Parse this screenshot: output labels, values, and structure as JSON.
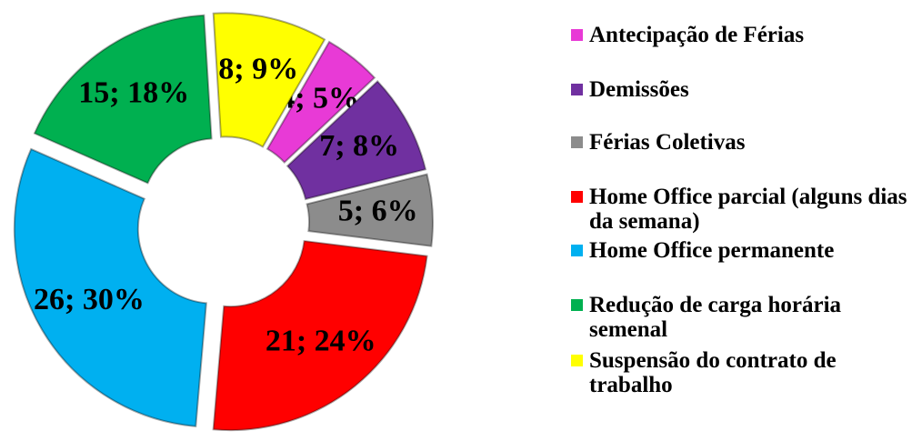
{
  "chart_data": {
    "type": "donut",
    "categories": [
      "Antecipação de Férias",
      "Demissões",
      "Férias Coletivas",
      "Home Office parcial (alguns dias da semana)",
      "Home Office permanente",
      "Redução de carga horária semenal",
      "Suspensão do contrato de trabalho"
    ],
    "values": [
      4,
      7,
      5,
      21,
      26,
      15,
      8
    ],
    "value_labels": [
      "4; 5%",
      "7; 8%",
      "5; 6%",
      "21; 24%",
      "26; 30%",
      "15; 18%",
      "8; 9%"
    ],
    "colors": [
      "#e83ad6",
      "#7030a0",
      "#8c8c8c",
      "#ff0000",
      "#00b0f0",
      "#00b050",
      "#ffff00"
    ],
    "legend": "right"
  }
}
